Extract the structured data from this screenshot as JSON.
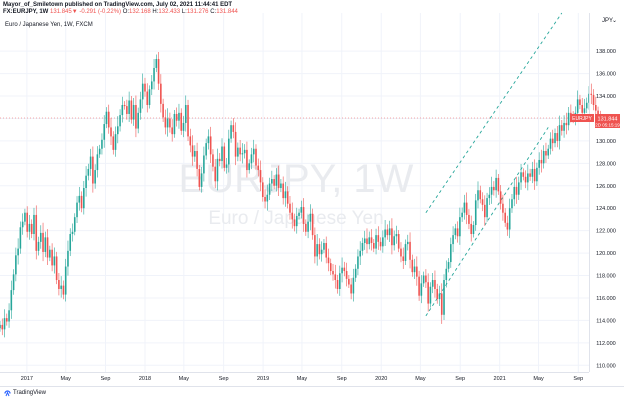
{
  "header": {
    "line1": "Mayor_of_Smiletown published on TradingView.com, July 02, 2021 11:44:41 EDT",
    "symbol": "FX:EURJPY, 1W",
    "last": "131.845",
    "change": "-0.291 (-0.22%)",
    "open_label": "O:",
    "open": "132.168",
    "high_label": "H:",
    "high": "132.433",
    "low_label": "L:",
    "low": "131.276",
    "close_label": "C:",
    "close": "131.844"
  },
  "subtitle": "Euro / Japanese Yen, 1W, FXCM",
  "watermark": {
    "symbol": "EURJPY, 1W",
    "name": "Euro / Japanese Yen"
  },
  "currency_label": "JPY",
  "price_tag": {
    "symbol": "EURJPY",
    "price": "131.844",
    "countdown": "2D 05:15:19"
  },
  "footer": {
    "brand": "TradingView"
  },
  "colors": {
    "up": "#26a69a",
    "down": "#ef5350",
    "channel": "#26a69a",
    "grid": "#f0f3fa",
    "axis_text": "#131722"
  },
  "chart_data": {
    "type": "candlestick",
    "title": "Euro / Japanese Yen, 1W, FXCM",
    "x_range": [
      "2016-10-10",
      "2021-10-04"
    ],
    "ylim": [
      109.4,
      141.4
    ],
    "y_ticks": [
      110,
      112,
      114,
      116,
      118,
      120,
      122,
      124,
      126,
      128,
      130,
      132,
      134,
      136,
      138
    ],
    "x_ticks": [
      {
        "label": "2017",
        "date": "2017-01-01"
      },
      {
        "label": "May",
        "date": "2017-05-01"
      },
      {
        "label": "Sep",
        "date": "2017-09-01"
      },
      {
        "label": "2018",
        "date": "2018-01-01"
      },
      {
        "label": "May",
        "date": "2018-05-01"
      },
      {
        "label": "Sep",
        "date": "2018-09-01"
      },
      {
        "label": "2019",
        "date": "2019-01-01"
      },
      {
        "label": "May",
        "date": "2019-05-01"
      },
      {
        "label": "Sep",
        "date": "2019-09-01"
      },
      {
        "label": "2020",
        "date": "2020-01-01"
      },
      {
        "label": "May",
        "date": "2020-05-01"
      },
      {
        "label": "Sep",
        "date": "2020-09-01"
      },
      {
        "label": "2021",
        "date": "2021-01-01"
      },
      {
        "label": "May",
        "date": "2021-05-01"
      },
      {
        "label": "Sep",
        "date": "2021-09-01"
      }
    ],
    "grid": true,
    "bar_interval": "1W",
    "first_bar_date": "2016-10-10",
    "closes": [
      113.6,
      113.2,
      114.2,
      113.9,
      114.9,
      116.7,
      118.1,
      119.8,
      120.4,
      122.3,
      122.8,
      123.6,
      121.9,
      122.6,
      121.7,
      123.4,
      120.2,
      121.0,
      121.8,
      120.1,
      121.4,
      119.6,
      120.3,
      118.9,
      119.7,
      117.6,
      116.8,
      117.1,
      116.3,
      118.8,
      120.2,
      121.7,
      121.9,
      123.2,
      124.5,
      125.1,
      124.0,
      125.8,
      126.9,
      127.5,
      128.6,
      126.2,
      127.4,
      128.8,
      129.3,
      130.1,
      131.5,
      132.6,
      131.2,
      130.4,
      129.2,
      130.6,
      131.3,
      132.3,
      133.2,
      133.1,
      132.4,
      133.6,
      131.9,
      133.2,
      131.1,
      132.5,
      133.7,
      135.1,
      134.4,
      133.2,
      134.6,
      135.3,
      136.5,
      137.3,
      135.1,
      133.3,
      132.1,
      131.2,
      132.0,
      131.2,
      130.6,
      132.4,
      131.8,
      132.5,
      130.9,
      131.6,
      133.2,
      130.4,
      129.6,
      128.6,
      129.1,
      127.5,
      125.9,
      127.1,
      128.7,
      129.8,
      130.4,
      128.8,
      127.7,
      126.4,
      128.4,
      128.2,
      129.5,
      127.6,
      127.9,
      130.2,
      131.4,
      130.8,
      128.6,
      129.4,
      128.8,
      128.9,
      129.2,
      127.4,
      128.0,
      128.8,
      129.3,
      127.8,
      127.4,
      126.3,
      125.0,
      124.6,
      125.2,
      126.2,
      126.6,
      126.0,
      127.0,
      125.8,
      126.2,
      124.9,
      125.5,
      124.4,
      123.6,
      123.0,
      122.4,
      123.3,
      123.6,
      124.1,
      122.6,
      121.9,
      122.8,
      123.5,
      121.6,
      119.7,
      120.8,
      119.9,
      120.3,
      120.9,
      119.6,
      119.1,
      118.4,
      118.1,
      117.6,
      116.8,
      118.2,
      118.7,
      118.4,
      117.7,
      117.2,
      116.4,
      117.8,
      118.6,
      119.7,
      120.2,
      120.9,
      121.3,
      120.8,
      121.4,
      120.9,
      120.4,
      121.6,
      121.0,
      120.6,
      121.4,
      122.1,
      121.6,
      122.2,
      120.7,
      121.5,
      121.7,
      120.4,
      119.7,
      119.3,
      120.8,
      121.0,
      119.4,
      118.3,
      118.8,
      117.9,
      116.2,
      117.3,
      118.0,
      117.4,
      115.5,
      117.0,
      117.6,
      116.8,
      115.9,
      116.4,
      114.5,
      117.6,
      118.6,
      119.2,
      120.8,
      121.6,
      122.2,
      121.5,
      123.2,
      123.6,
      124.5,
      123.4,
      122.6,
      121.7,
      122.5,
      124.7,
      125.6,
      124.8,
      124.3,
      123.2,
      124.9,
      125.2,
      125.9,
      125.6,
      126.7,
      125.5,
      124.4,
      123.6,
      122.7,
      122.1,
      124.0,
      124.8,
      125.9,
      125.2,
      126.3,
      127.2,
      126.8,
      126.3,
      127.1,
      126.8,
      127.5,
      126.4,
      127.6,
      128.3,
      128.0,
      129.1,
      128.7,
      129.3,
      130.2,
      129.8,
      130.7,
      130.0,
      131.4,
      130.9,
      131.6,
      131.4,
      132.5,
      132.3,
      131.9,
      132.5,
      133.7,
      133.2,
      132.5,
      132.9,
      133.4,
      134.2,
      134.1,
      133.2,
      132.7,
      132.1,
      131.844
    ]
  }
}
